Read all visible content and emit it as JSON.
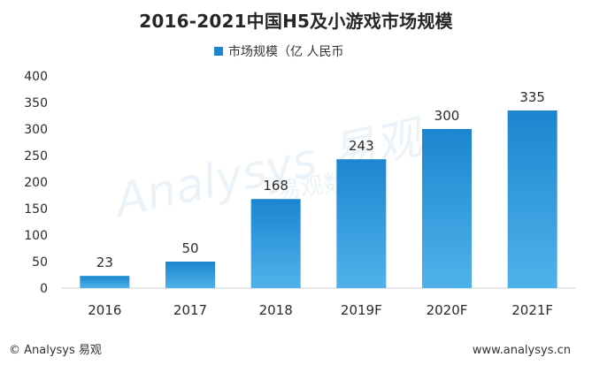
{
  "page": {
    "copyright": "© Analysys 易观",
    "website": "www.analysys.cn",
    "watermark": "Analysys 易观",
    "watermark_sub": "易观数据"
  },
  "chart_data": {
    "type": "bar",
    "title": "2016-2021中国H5及小游戏市场规模",
    "series": [
      {
        "name": "市场规模（亿 人民币",
        "values": [
          23,
          50,
          168,
          243,
          300,
          335
        ]
      }
    ],
    "categories": [
      "2016",
      "2017",
      "2018",
      "2019F",
      "2020F",
      "2021F"
    ],
    "values": [
      23,
      50,
      168,
      243,
      300,
      335
    ],
    "xlabel": "",
    "ylabel": "",
    "ylim": [
      0,
      400
    ],
    "yticks": [
      0,
      50,
      100,
      150,
      200,
      250,
      300,
      350,
      400
    ],
    "legend_position": "top-center",
    "grid": false,
    "colors": {
      "bar": "#1b86cf",
      "bar_light": "#4fb2ea",
      "axis": "#d0d0d0",
      "text": "#2b2b2b"
    }
  }
}
